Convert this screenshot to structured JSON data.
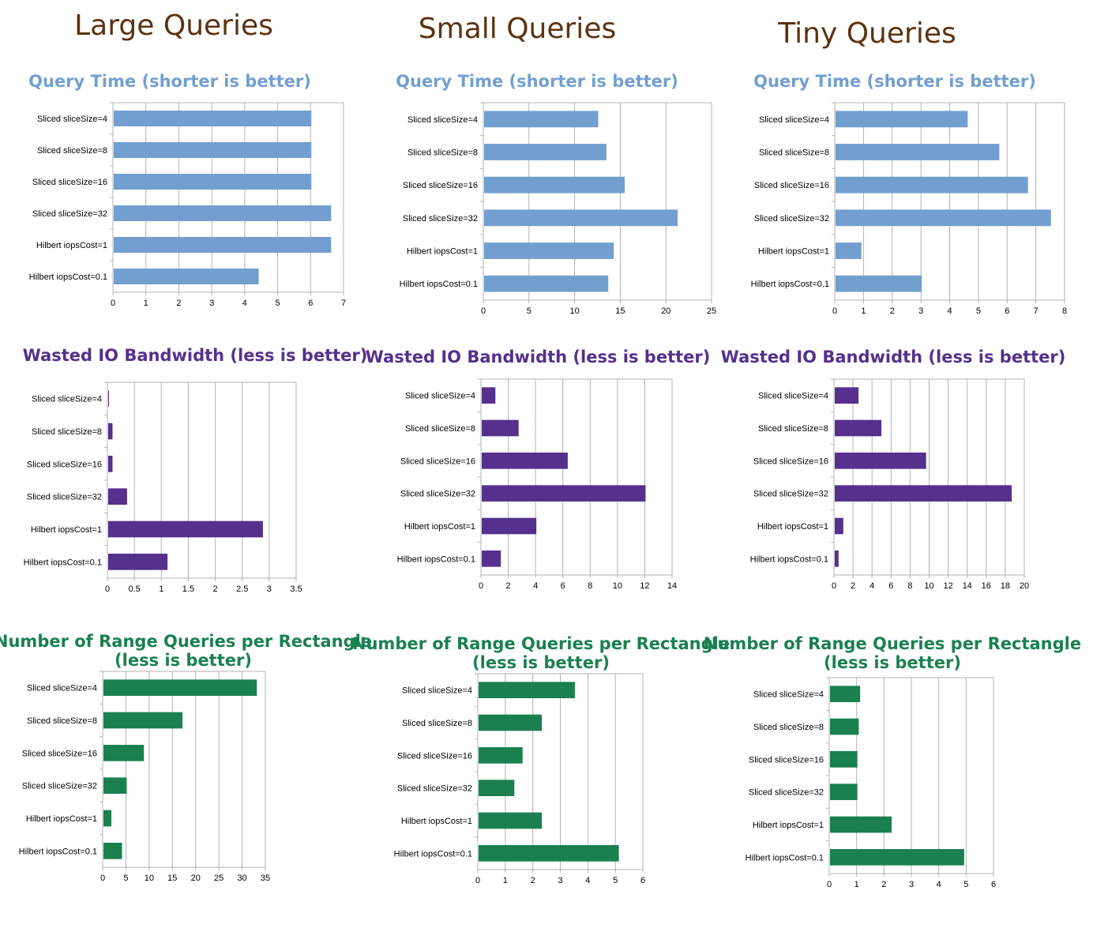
{
  "columns": [
    {
      "title": "Large Queries"
    },
    {
      "title": "Small Queries"
    },
    {
      "title": "Tiny Queries"
    }
  ],
  "colors": {
    "blue": "#729fcf",
    "purple": "#55308d",
    "green": "#1a8050",
    "title_blue": "#729fcf",
    "title_purple": "#55308d",
    "title_green": "#1a8050",
    "column_title": "#5c3310"
  },
  "chart_data": [
    {
      "id": "large-time",
      "type": "bar",
      "orientation": "horizontal",
      "title": [
        "Query Time (shorter is better)"
      ],
      "categories": [
        "Sliced sliceSize=4",
        "Sliced sliceSize=8",
        "Sliced sliceSize=16",
        "Sliced sliceSize=32",
        "Hilbert iopsCost=1",
        "Hilbert iopsCost=0.1"
      ],
      "values": [
        6.0,
        6.0,
        6.0,
        6.6,
        6.6,
        4.4
      ],
      "xlim": [
        0,
        7
      ],
      "ticks": [
        "0",
        "1",
        "2",
        "3",
        "4",
        "5",
        "6",
        "7"
      ],
      "color": "#729fcf",
      "grid": true
    },
    {
      "id": "small-time",
      "type": "bar",
      "orientation": "horizontal",
      "title": [
        "Query Time (shorter is better)"
      ],
      "categories": [
        "Sliced sliceSize=4",
        "Sliced sliceSize=8",
        "Sliced sliceSize=16",
        "Sliced sliceSize=32",
        "Hilbert iopsCost=1",
        "Hilbert iopsCost=0.1"
      ],
      "values": [
        12.5,
        13.4,
        15.4,
        21.2,
        14.2,
        13.6
      ],
      "xlim": [
        0,
        25
      ],
      "ticks": [
        "0",
        "5",
        "10",
        "15",
        "20",
        "25"
      ],
      "color": "#729fcf",
      "grid": true
    },
    {
      "id": "tiny-time",
      "type": "bar",
      "orientation": "horizontal",
      "title": [
        "Query Time (shorter is better)"
      ],
      "categories": [
        "Sliced sliceSize=4",
        "Sliced sliceSize=8",
        "Sliced sliceSize=16",
        "Sliced sliceSize=32",
        "Hilbert iopsCost=1",
        "Hilbert iopsCost=0.1"
      ],
      "values": [
        4.6,
        5.7,
        6.7,
        7.5,
        0.9,
        3.0
      ],
      "xlim": [
        0,
        8
      ],
      "ticks": [
        "0",
        "1",
        "2",
        "3",
        "4",
        "5",
        "6",
        "7",
        "8"
      ],
      "color": "#729fcf",
      "grid": true
    },
    {
      "id": "large-io",
      "type": "bar",
      "orientation": "horizontal",
      "title": [
        "Wasted IO Bandwidth (less is better)"
      ],
      "categories": [
        "Sliced sliceSize=4",
        "Sliced sliceSize=8",
        "Sliced sliceSize=16",
        "Sliced sliceSize=32",
        "Hilbert iopsCost=1",
        "Hilbert iopsCost=0.1"
      ],
      "values": [
        0.01,
        0.08,
        0.08,
        0.35,
        2.87,
        1.1
      ],
      "xlim": [
        0,
        3.5
      ],
      "ticks": [
        "0",
        "0.5",
        "1",
        "1.5",
        "2",
        "2.5",
        "3",
        "3.5"
      ],
      "color": "#55308d",
      "grid": true
    },
    {
      "id": "small-io",
      "type": "bar",
      "orientation": "horizontal",
      "title": [
        "Wasted IO Bandwidth (less is better)"
      ],
      "categories": [
        "Sliced sliceSize=4",
        "Sliced sliceSize=8",
        "Sliced sliceSize=16",
        "Sliced sliceSize=32",
        "Hilbert iopsCost=1",
        "Hilbert iopsCost=0.1"
      ],
      "values": [
        1.0,
        2.7,
        6.3,
        12.0,
        4.0,
        1.4
      ],
      "xlim": [
        0,
        14
      ],
      "ticks": [
        "0",
        "2",
        "4",
        "6",
        "8",
        "10",
        "12",
        "14"
      ],
      "color": "#55308d",
      "grid": true
    },
    {
      "id": "tiny-io",
      "type": "bar",
      "orientation": "horizontal",
      "title": [
        "Wasted IO Bandwidth (less is better)"
      ],
      "categories": [
        "Sliced sliceSize=4",
        "Sliced sliceSize=8",
        "Sliced sliceSize=16",
        "Sliced sliceSize=32",
        "Hilbert iopsCost=1",
        "Hilbert iopsCost=0.1"
      ],
      "values": [
        2.5,
        4.9,
        9.6,
        18.6,
        0.9,
        0.4
      ],
      "xlim": [
        0,
        20
      ],
      "ticks": [
        "0",
        "2",
        "4",
        "6",
        "8",
        "10",
        "12",
        "14",
        "16",
        "18",
        "20"
      ],
      "color": "#55308d",
      "grid": true
    },
    {
      "id": "large-rq",
      "type": "bar",
      "orientation": "horizontal",
      "title": [
        "Number of Range Queries per Rectangle",
        "(less is better)"
      ],
      "categories": [
        "Sliced sliceSize=4",
        "Sliced sliceSize=8",
        "Sliced sliceSize=16",
        "Sliced sliceSize=32",
        "Hilbert iopsCost=1",
        "Hilbert iopsCost=0.1"
      ],
      "values": [
        33.0,
        17.0,
        8.7,
        5.0,
        1.7,
        4.0
      ],
      "xlim": [
        0,
        35
      ],
      "ticks": [
        "0",
        "5",
        "10",
        "15",
        "20",
        "25",
        "30",
        "35"
      ],
      "color": "#1a8050",
      "grid": true
    },
    {
      "id": "small-rq",
      "type": "bar",
      "orientation": "horizontal",
      "title": [
        "Number of Range Queries per Rectangle",
        "(less is better)"
      ],
      "categories": [
        "Sliced sliceSize=4",
        "Sliced sliceSize=8",
        "Sliced sliceSize=16",
        "Sliced sliceSize=32",
        "Hilbert iopsCost=1",
        "Hilbert iopsCost=0.1"
      ],
      "values": [
        3.5,
        2.3,
        1.6,
        1.3,
        2.3,
        5.1
      ],
      "xlim": [
        0,
        6
      ],
      "ticks": [
        "0",
        "1",
        "2",
        "3",
        "4",
        "5",
        "6"
      ],
      "color": "#1a8050",
      "grid": true
    },
    {
      "id": "tiny-rq",
      "type": "bar",
      "orientation": "horizontal",
      "title": [
        "Number of Range Queries per Rectangle",
        "(less is better)"
      ],
      "categories": [
        "Sliced sliceSize=4",
        "Sliced sliceSize=8",
        "Sliced sliceSize=16",
        "Sliced sliceSize=32",
        "Hilbert iopsCost=1",
        "Hilbert iopsCost=0.1"
      ],
      "values": [
        1.1,
        1.05,
        1.0,
        1.0,
        2.25,
        4.9
      ],
      "xlim": [
        0,
        6
      ],
      "ticks": [
        "0",
        "1",
        "2",
        "3",
        "4",
        "5",
        "6"
      ],
      "color": "#1a8050",
      "grid": true
    }
  ]
}
